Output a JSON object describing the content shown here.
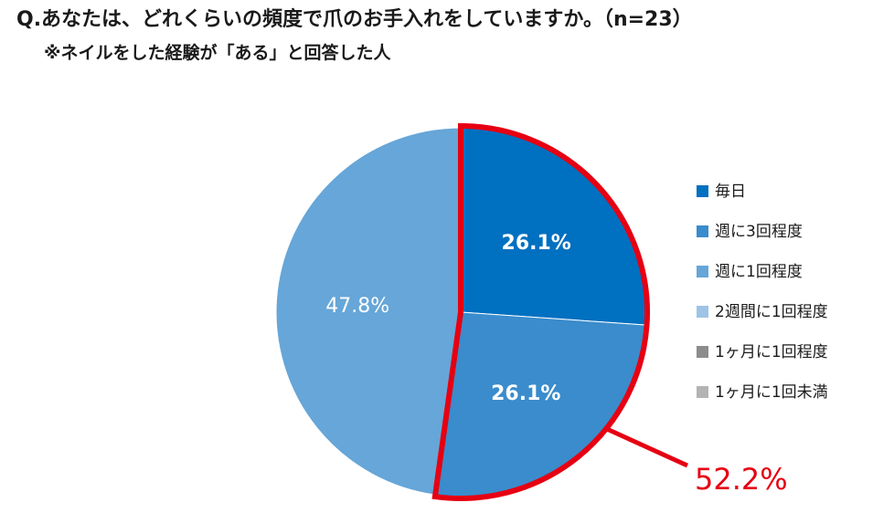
{
  "chart_data": {
    "type": "pie",
    "title": "Q.あなたは、どれくらいの頻度で爪のお手入れをしていますか。（n=23）",
    "subtitle": "※ネイルをした経験が「ある」と回答した人",
    "slices": [
      {
        "name": "毎日",
        "value": 26.1,
        "label": "26.1%",
        "color": "#0070c0"
      },
      {
        "name": "週に3回程度",
        "value": 26.1,
        "label": "26.1%",
        "color": "#3a8ccc"
      },
      {
        "name": "週に1回程度",
        "value": 47.8,
        "label": "47.8%",
        "color": "#66a6d8"
      },
      {
        "name": "2週間に1回程度",
        "value": 0,
        "label": "",
        "color": "#9dc3e6"
      },
      {
        "name": "1ヶ月に1回程度",
        "value": 0,
        "label": "",
        "color": "#8c8c8c"
      },
      {
        "name": "1ヶ月に1回未満",
        "value": 0,
        "label": "",
        "color": "#b3b3b3"
      }
    ],
    "legend_position": "right",
    "callout": {
      "text": "52.2%",
      "color": "#e60012"
    }
  }
}
